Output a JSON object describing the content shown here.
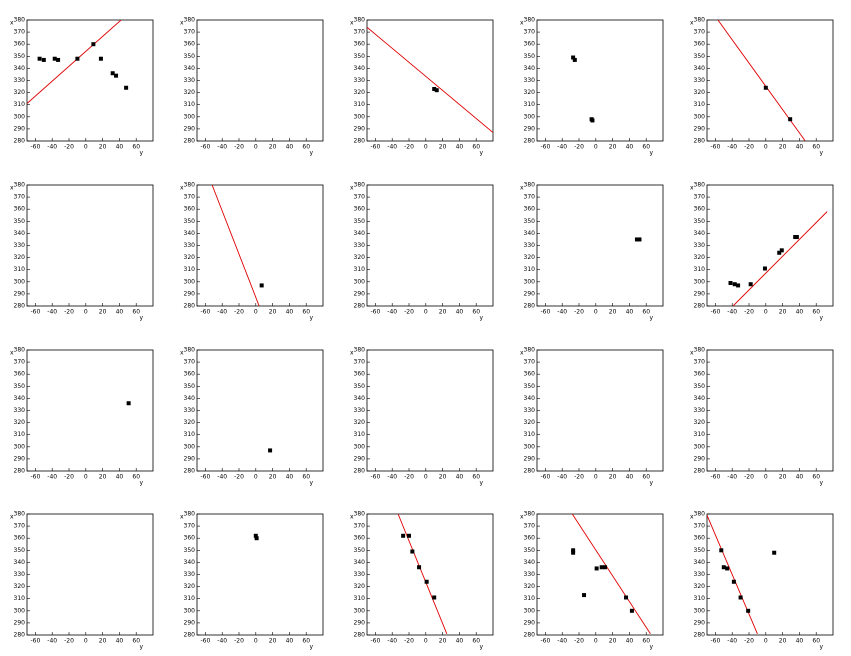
{
  "chart_data": [
    {
      "type": "scatter",
      "x_label": "y",
      "y_label": "x",
      "xlim": [
        -70,
        80
      ],
      "ylim": [
        280,
        380
      ],
      "xticks": [
        -60,
        -40,
        -20,
        0,
        20,
        40,
        60
      ],
      "yticks": [
        280,
        290,
        300,
        310,
        320,
        330,
        340,
        350,
        360,
        370,
        380
      ],
      "marker_color": "#000000",
      "points": {
        "x": [
          -55,
          -50,
          -37,
          -33,
          -10,
          9,
          18,
          32,
          36,
          48
        ],
        "y": [
          348,
          347,
          348,
          347,
          348,
          360,
          348,
          336,
          334,
          324
        ]
      },
      "line": {
        "color": "#e00000",
        "x": [
          -70,
          42
        ],
        "y": [
          311,
          380
        ]
      }
    },
    {
      "type": "scatter",
      "x_label": "y",
      "y_label": "x",
      "xlim": [
        -70,
        80
      ],
      "ylim": [
        280,
        380
      ],
      "xticks": [
        -60,
        -40,
        -20,
        0,
        20,
        40,
        60
      ],
      "yticks": [
        280,
        290,
        300,
        310,
        320,
        330,
        340,
        350,
        360,
        370,
        380
      ],
      "marker_color": "#000000",
      "points": {
        "x": [],
        "y": []
      }
    },
    {
      "type": "scatter",
      "x_label": "y",
      "y_label": "x",
      "xlim": [
        -70,
        80
      ],
      "ylim": [
        280,
        380
      ],
      "xticks": [
        -60,
        -40,
        -20,
        0,
        20,
        40,
        60
      ],
      "yticks": [
        280,
        290,
        300,
        310,
        320,
        330,
        340,
        350,
        360,
        370,
        380
      ],
      "marker_color": "#000000",
      "points": {
        "x": [
          10,
          13
        ],
        "y": [
          323,
          322
        ]
      },
      "line": {
        "color": "#e00000",
        "x": [
          -70,
          80
        ],
        "y": [
          374,
          287
        ]
      }
    },
    {
      "type": "scatter",
      "x_label": "y",
      "y_label": "x",
      "xlim": [
        -70,
        80
      ],
      "ylim": [
        280,
        380
      ],
      "xticks": [
        -60,
        -40,
        -20,
        0,
        20,
        40,
        60
      ],
      "yticks": [
        280,
        290,
        300,
        310,
        320,
        330,
        340,
        350,
        360,
        370,
        380
      ],
      "marker_color": "#000000",
      "points": {
        "x": [
          -27,
          -25,
          -4,
          -5
        ],
        "y": [
          349,
          347,
          297,
          298
        ]
      }
    },
    {
      "type": "scatter",
      "x_label": "y",
      "y_label": "x",
      "xlim": [
        -70,
        80
      ],
      "ylim": [
        280,
        380
      ],
      "xticks": [
        -60,
        -40,
        -20,
        0,
        20,
        40,
        60
      ],
      "yticks": [
        280,
        290,
        300,
        310,
        320,
        330,
        340,
        350,
        360,
        370,
        380
      ],
      "marker_color": "#000000",
      "points": {
        "x": [
          0,
          29
        ],
        "y": [
          324,
          298
        ]
      },
      "line": {
        "color": "#e00000",
        "x": [
          -57,
          47
        ],
        "y": [
          380,
          280
        ]
      }
    },
    {
      "type": "scatter",
      "x_label": "y",
      "y_label": "x",
      "xlim": [
        -70,
        80
      ],
      "ylim": [
        280,
        380
      ],
      "xticks": [
        -60,
        -40,
        -20,
        0,
        20,
        40,
        60
      ],
      "yticks": [
        280,
        290,
        300,
        310,
        320,
        330,
        340,
        350,
        360,
        370,
        380
      ],
      "marker_color": "#000000",
      "points": {
        "x": [],
        "y": []
      }
    },
    {
      "type": "scatter",
      "x_label": "y",
      "y_label": "x",
      "xlim": [
        -70,
        80
      ],
      "ylim": [
        280,
        380
      ],
      "xticks": [
        -60,
        -40,
        -20,
        0,
        20,
        40,
        60
      ],
      "yticks": [
        280,
        290,
        300,
        310,
        320,
        330,
        340,
        350,
        360,
        370,
        380
      ],
      "marker_color": "#000000",
      "points": {
        "x": [
          7
        ],
        "y": [
          297
        ]
      },
      "line": {
        "color": "#e00000",
        "x": [
          -52,
          4
        ],
        "y": [
          380,
          280
        ]
      }
    },
    {
      "type": "scatter",
      "x_label": "y",
      "y_label": "x",
      "xlim": [
        -70,
        80
      ],
      "ylim": [
        280,
        380
      ],
      "xticks": [
        -60,
        -40,
        -20,
        0,
        20,
        40,
        60
      ],
      "yticks": [
        280,
        290,
        300,
        310,
        320,
        330,
        340,
        350,
        360,
        370,
        380
      ],
      "marker_color": "#000000",
      "points": {
        "x": [],
        "y": []
      }
    },
    {
      "type": "scatter",
      "x_label": "y",
      "y_label": "x",
      "xlim": [
        -70,
        80
      ],
      "ylim": [
        280,
        380
      ],
      "xticks": [
        -60,
        -40,
        -20,
        0,
        20,
        40,
        60
      ],
      "yticks": [
        280,
        290,
        300,
        310,
        320,
        330,
        340,
        350,
        360,
        370,
        380
      ],
      "marker_color": "#000000",
      "points": {
        "x": [
          49,
          52
        ],
        "y": [
          335,
          335
        ]
      }
    },
    {
      "type": "scatter",
      "x_label": "y",
      "y_label": "x",
      "xlim": [
        -70,
        80
      ],
      "ylim": [
        280,
        380
      ],
      "xticks": [
        -60,
        -40,
        -20,
        0,
        20,
        40,
        60
      ],
      "yticks": [
        280,
        290,
        300,
        310,
        320,
        330,
        340,
        350,
        360,
        370,
        380
      ],
      "marker_color": "#000000",
      "points": {
        "x": [
          -42,
          -37,
          -33,
          -18,
          -1,
          16,
          19,
          35,
          37
        ],
        "y": [
          299,
          298,
          297,
          298,
          311,
          324,
          326,
          337,
          337
        ]
      },
      "line": {
        "color": "#e00000",
        "x": [
          -39,
          73
        ],
        "y": [
          280,
          358
        ]
      }
    },
    {
      "type": "scatter",
      "x_label": "y",
      "y_label": "x",
      "xlim": [
        -70,
        80
      ],
      "ylim": [
        280,
        380
      ],
      "xticks": [
        -60,
        -40,
        -20,
        0,
        20,
        40,
        60
      ],
      "yticks": [
        280,
        290,
        300,
        310,
        320,
        330,
        340,
        350,
        360,
        370,
        380
      ],
      "marker_color": "#000000",
      "points": {
        "x": [
          51
        ],
        "y": [
          336
        ]
      }
    },
    {
      "type": "scatter",
      "x_label": "y",
      "y_label": "x",
      "xlim": [
        -70,
        80
      ],
      "ylim": [
        280,
        380
      ],
      "xticks": [
        -60,
        -40,
        -20,
        0,
        20,
        40,
        60
      ],
      "yticks": [
        280,
        290,
        300,
        310,
        320,
        330,
        340,
        350,
        360,
        370,
        380
      ],
      "marker_color": "#000000",
      "points": {
        "x": [
          17
        ],
        "y": [
          297
        ]
      }
    },
    {
      "type": "scatter",
      "x_label": "y",
      "y_label": "x",
      "xlim": [
        -70,
        80
      ],
      "ylim": [
        280,
        380
      ],
      "xticks": [
        -60,
        -40,
        -20,
        0,
        20,
        40,
        60
      ],
      "yticks": [
        280,
        290,
        300,
        310,
        320,
        330,
        340,
        350,
        360,
        370,
        380
      ],
      "marker_color": "#000000",
      "points": {
        "x": [],
        "y": []
      }
    },
    {
      "type": "scatter",
      "x_label": "y",
      "y_label": "x",
      "xlim": [
        -70,
        80
      ],
      "ylim": [
        280,
        380
      ],
      "xticks": [
        -60,
        -40,
        -20,
        0,
        20,
        40,
        60
      ],
      "yticks": [
        280,
        290,
        300,
        310,
        320,
        330,
        340,
        350,
        360,
        370,
        380
      ],
      "marker_color": "#000000",
      "points": {
        "x": [],
        "y": []
      }
    },
    {
      "type": "scatter",
      "x_label": "y",
      "y_label": "x",
      "xlim": [
        -70,
        80
      ],
      "ylim": [
        280,
        380
      ],
      "xticks": [
        -60,
        -40,
        -20,
        0,
        20,
        40,
        60
      ],
      "yticks": [
        280,
        290,
        300,
        310,
        320,
        330,
        340,
        350,
        360,
        370,
        380
      ],
      "marker_color": "#000000",
      "points": {
        "x": [],
        "y": []
      }
    },
    {
      "type": "scatter",
      "x_label": "y",
      "y_label": "x",
      "xlim": [
        -70,
        80
      ],
      "ylim": [
        280,
        380
      ],
      "xticks": [
        -60,
        -40,
        -20,
        0,
        20,
        40,
        60
      ],
      "yticks": [
        280,
        290,
        300,
        310,
        320,
        330,
        340,
        350,
        360,
        370,
        380
      ],
      "marker_color": "#000000",
      "points": {
        "x": [],
        "y": []
      }
    },
    {
      "type": "scatter",
      "x_label": "y",
      "y_label": "x",
      "xlim": [
        -70,
        80
      ],
      "ylim": [
        280,
        380
      ],
      "xticks": [
        -60,
        -40,
        -20,
        0,
        20,
        40,
        60
      ],
      "yticks": [
        280,
        290,
        300,
        310,
        320,
        330,
        340,
        350,
        360,
        370,
        380
      ],
      "marker_color": "#000000",
      "points": {
        "x": [
          0,
          1
        ],
        "y": [
          362,
          360
        ]
      }
    },
    {
      "type": "scatter",
      "x_label": "y",
      "y_label": "x",
      "xlim": [
        -70,
        80
      ],
      "ylim": [
        280,
        380
      ],
      "xticks": [
        -60,
        -40,
        -20,
        0,
        20,
        40,
        60
      ],
      "yticks": [
        280,
        290,
        300,
        310,
        320,
        330,
        340,
        350,
        360,
        370,
        380
      ],
      "marker_color": "#000000",
      "points": {
        "x": [
          -27,
          -20,
          -16,
          -8,
          1,
          10
        ],
        "y": [
          362,
          362,
          349,
          336,
          324,
          311
        ]
      },
      "line": {
        "color": "#e00000",
        "x": [
          -33,
          25
        ],
        "y": [
          380,
          281
        ]
      }
    },
    {
      "type": "scatter",
      "x_label": "y",
      "y_label": "x",
      "xlim": [
        -70,
        80
      ],
      "ylim": [
        280,
        380
      ],
      "xticks": [
        -60,
        -40,
        -20,
        0,
        20,
        40,
        60
      ],
      "yticks": [
        280,
        290,
        300,
        310,
        320,
        330,
        340,
        350,
        360,
        370,
        380
      ],
      "marker_color": "#000000",
      "points": {
        "x": [
          -27,
          -27,
          -14,
          1,
          7,
          11,
          36,
          43
        ],
        "y": [
          350,
          348,
          313,
          335,
          336,
          336,
          311,
          300
        ]
      },
      "line": {
        "color": "#e00000",
        "x": [
          -28,
          65
        ],
        "y": [
          380,
          281
        ]
      }
    },
    {
      "type": "scatter",
      "x_label": "y",
      "y_label": "x",
      "xlim": [
        -70,
        80
      ],
      "ylim": [
        280,
        380
      ],
      "xticks": [
        -60,
        -40,
        -20,
        0,
        20,
        40,
        60
      ],
      "yticks": [
        280,
        290,
        300,
        310,
        320,
        330,
        340,
        350,
        360,
        370,
        380
      ],
      "marker_color": "#000000",
      "points": {
        "x": [
          -53,
          -50,
          -46,
          -38,
          -30,
          -21,
          10
        ],
        "y": [
          350,
          336,
          335,
          324,
          311,
          300,
          348
        ]
      },
      "line": {
        "color": "#e00000",
        "x": [
          -70,
          -10
        ],
        "y": [
          379,
          281
        ]
      }
    }
  ]
}
